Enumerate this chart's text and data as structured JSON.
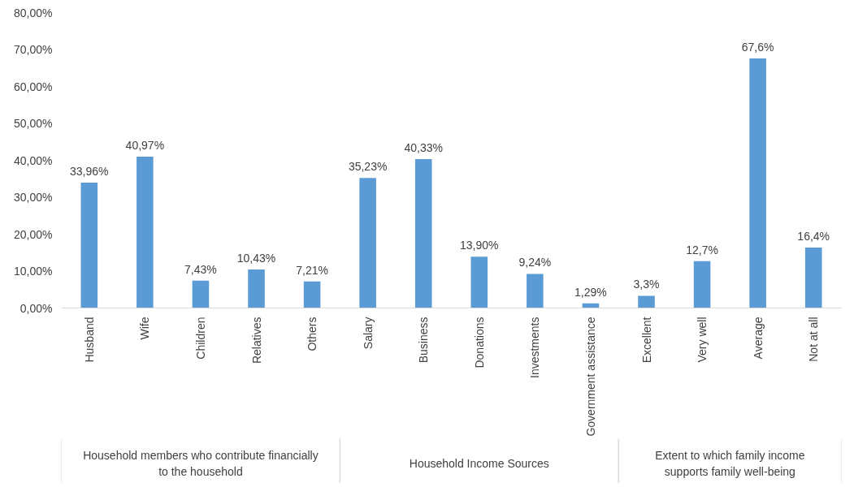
{
  "chart_data": {
    "type": "bar",
    "categories": [
      "Husband",
      "Wife",
      "Children",
      "Relatives",
      "Others",
      "Salary",
      "Business",
      "Donations",
      "Investments",
      "Government assistance",
      "Excellent",
      "Very well",
      "Average",
      "Not at all"
    ],
    "values": [
      33.96,
      40.97,
      7.43,
      10.43,
      7.21,
      35.23,
      40.33,
      13.9,
      9.24,
      1.29,
      3.3,
      12.7,
      67.6,
      16.4
    ],
    "value_labels": [
      "33,96%",
      "40,97%",
      "7,43%",
      "10,43%",
      "7,21%",
      "35,23%",
      "40,33%",
      "13,90%",
      "9,24%",
      "1,29%",
      "3,3%",
      "12,7%",
      "67,6%",
      "16,4%"
    ],
    "color": "#5b9bd5",
    "ylim": [
      0,
      80
    ],
    "yticks": [
      {
        "value": 0,
        "label": "0,00%"
      },
      {
        "value": 10,
        "label": "10,00%"
      },
      {
        "value": 20,
        "label": "20,00%"
      },
      {
        "value": 30,
        "label": "30,00%"
      },
      {
        "value": 40,
        "label": "40,00%"
      },
      {
        "value": 50,
        "label": "50,00%"
      },
      {
        "value": 60,
        "label": "60,00%"
      },
      {
        "value": 70,
        "label": "70,00%"
      },
      {
        "value": 80,
        "label": "80,00%"
      }
    ],
    "grid": false,
    "annotations": [
      "Household members who contribute financially to the household",
      "Household Income Sources",
      "Extent to which family income supports family well-being"
    ]
  }
}
